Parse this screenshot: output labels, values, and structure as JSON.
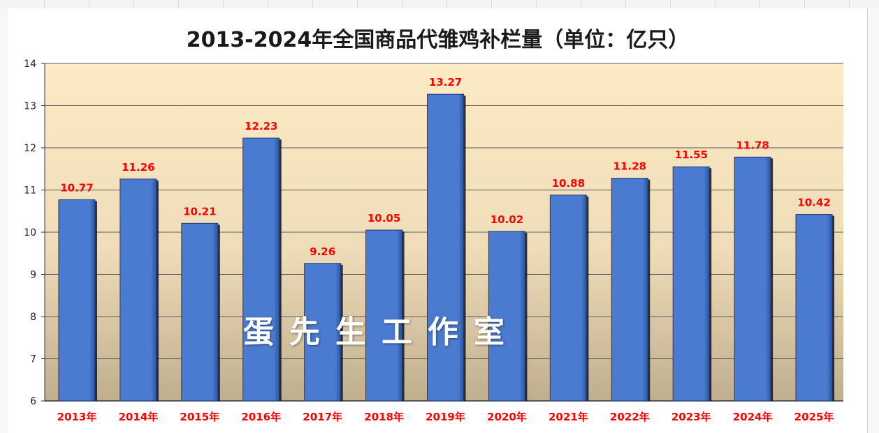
{
  "chart_data": {
    "type": "bar",
    "title": "2013-2024年全国商品代雏鸡补栏量（单位：亿只）",
    "categories": [
      "2013年",
      "2014年",
      "2015年",
      "2016年",
      "2017年",
      "2018年",
      "2019年",
      "2020年",
      "2021年",
      "2022年",
      "2023年",
      "2024年",
      "2025年"
    ],
    "values": [
      10.77,
      11.26,
      10.21,
      12.23,
      9.26,
      10.05,
      13.27,
      10.02,
      10.88,
      11.28,
      11.55,
      11.78,
      10.42
    ],
    "data_labels": [
      "10.77",
      "11.26",
      "10.21",
      "12.23",
      "9.26",
      "10.05",
      "13.27",
      "10.02",
      "10.88",
      "11.28",
      "11.55",
      "11.78",
      "10.42"
    ],
    "ylim": [
      6,
      14
    ],
    "yticks": [
      6,
      7,
      8,
      9,
      10,
      11,
      12,
      13,
      14
    ],
    "grid": true,
    "legend": "none",
    "xlabel": "",
    "ylabel": "",
    "colors": {
      "bar": "#4a7bd0",
      "bar_edge": "#1e3a78",
      "data_label": "#ff0000",
      "category_label": "#ff0000",
      "plot_bg_top": "#fdebc6",
      "plot_bg_bottom": "#bfae8e",
      "grid": "#5a5a5a"
    }
  },
  "watermark": "蛋先生工作室"
}
